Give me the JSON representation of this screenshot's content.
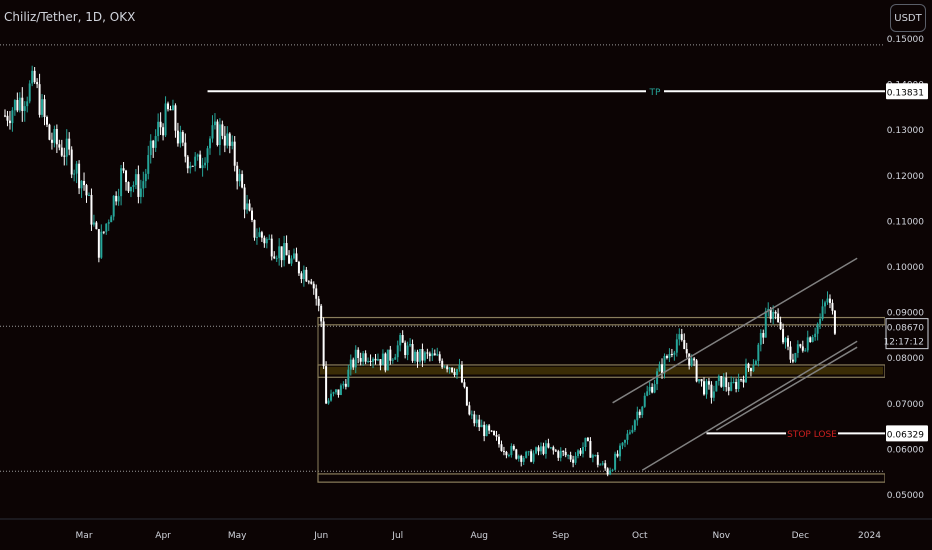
{
  "header": {
    "title": "Chiliz/Tether, 1D, OKX",
    "currency_button": "USDT"
  },
  "colors": {
    "background": "#0c0404",
    "up": "#26a69a",
    "down": "#ffffff",
    "zone_fill": "#3a2c06",
    "zone_border": "#8a7e5c",
    "channel": "#808080",
    "text": "#d1d4dc",
    "stop_text": "#cc1f1f",
    "tp_text": "#26a69a"
  },
  "chart_data": {
    "type": "candlestick",
    "title": "Chiliz/Tether, 1D, OKX",
    "x_ticks": [
      "Mar",
      "Apr",
      "May",
      "Jun",
      "Jul",
      "Aug",
      "Sep",
      "Oct",
      "Nov",
      "Dec",
      "2024"
    ],
    "y_ticks": [
      "0.15000",
      "0.14000",
      "0.13000",
      "0.12000",
      "0.11000",
      "0.10000",
      "0.09000",
      "0.08000",
      "0.07000",
      "0.06000",
      "0.05000"
    ],
    "ylim": [
      0.0445,
      0.154
    ],
    "current_price": "0.08670",
    "countdown": "12:17:12",
    "anchors": [
      [
        0,
        0.133
      ],
      [
        12,
        0.14
      ],
      [
        18,
        0.128
      ],
      [
        25,
        0.125
      ],
      [
        32,
        0.118
      ],
      [
        38,
        0.104
      ],
      [
        47,
        0.12
      ],
      [
        55,
        0.117
      ],
      [
        62,
        0.13
      ],
      [
        67,
        0.134
      ],
      [
        72,
        0.125
      ],
      [
        78,
        0.122
      ],
      [
        83,
        0.128
      ],
      [
        88,
        0.13
      ],
      [
        93,
        0.123
      ],
      [
        100,
        0.108
      ],
      [
        105,
        0.106
      ],
      [
        112,
        0.103
      ],
      [
        118,
        0.1
      ],
      [
        124,
        0.098
      ],
      [
        128,
        0.088
      ],
      [
        130,
        0.07
      ],
      [
        136,
        0.073
      ],
      [
        142,
        0.08
      ],
      [
        148,
        0.081
      ],
      [
        154,
        0.079
      ],
      [
        160,
        0.083
      ],
      [
        166,
        0.08
      ],
      [
        172,
        0.08
      ],
      [
        178,
        0.079
      ],
      [
        184,
        0.077
      ],
      [
        188,
        0.067
      ],
      [
        194,
        0.064
      ],
      [
        200,
        0.061
      ],
      [
        206,
        0.059
      ],
      [
        212,
        0.058
      ],
      [
        218,
        0.06
      ],
      [
        224,
        0.059
      ],
      [
        230,
        0.058
      ],
      [
        235,
        0.061
      ],
      [
        240,
        0.057
      ],
      [
        244,
        0.055
      ],
      [
        250,
        0.06
      ],
      [
        256,
        0.068
      ],
      [
        262,
        0.074
      ],
      [
        268,
        0.08
      ],
      [
        272,
        0.084
      ],
      [
        276,
        0.081
      ],
      [
        282,
        0.074
      ],
      [
        286,
        0.072
      ],
      [
        290,
        0.075
      ],
      [
        294,
        0.073
      ],
      [
        300,
        0.077
      ],
      [
        304,
        0.08
      ],
      [
        308,
        0.088
      ],
      [
        311,
        0.091
      ],
      [
        314,
        0.085
      ],
      [
        318,
        0.08
      ],
      [
        322,
        0.082
      ],
      [
        326,
        0.085
      ],
      [
        330,
        0.088
      ],
      [
        333,
        0.093
      ],
      [
        336,
        0.087
      ]
    ],
    "zones": [
      {
        "name": "upper-zone",
        "from": 0.0871,
        "to": 0.0887
      },
      {
        "name": "middle-zone",
        "from": 0.0756,
        "to": 0.0783,
        "highlight_from": 0.0762,
        "highlight_to": 0.0779
      },
      {
        "name": "lower-zone",
        "from": 0.0526,
        "to": 0.0544
      }
    ],
    "channel_lines": [
      {
        "name": "channel-upper",
        "from": [
          246,
          0.07
        ],
        "to": [
          345,
          0.1017
        ]
      },
      {
        "name": "channel-lower",
        "from": [
          258,
          0.0552
        ],
        "to": [
          345,
          0.0835
        ]
      },
      {
        "name": "channel-inner",
        "from": [
          288,
          0.064
        ],
        "to": [
          345,
          0.0822
        ]
      }
    ],
    "levels": [
      {
        "name": "tp-level",
        "label": "TP",
        "price": 0.13831,
        "price_label": "0.13831",
        "from_day": 82
      },
      {
        "name": "stop-loss-level",
        "label": "STOP LOSE",
        "price": 0.06329,
        "price_label": "0.06329",
        "from_day": 284
      }
    ],
    "dotted_levels": [
      0.1485,
      0.0868,
      0.055
    ]
  }
}
